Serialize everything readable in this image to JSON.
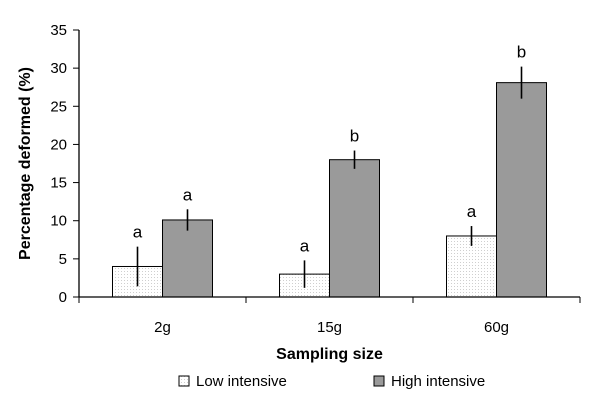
{
  "chart_data": {
    "type": "bar",
    "title": "",
    "xlabel": "Sampling size",
    "ylabel": "Percentage deformed (%)",
    "ylim": [
      0,
      35
    ],
    "yticks": [
      0,
      5,
      10,
      15,
      20,
      25,
      30,
      35
    ],
    "categories": [
      "2g",
      "15g",
      "60g"
    ],
    "legend_position": "bottom",
    "series": [
      {
        "name": "Low intensive",
        "color": "#f4f4f4",
        "values": [
          4,
          3,
          8
        ],
        "error": [
          2.6,
          1.8,
          1.3
        ],
        "labels": [
          "a",
          "a",
          "a"
        ]
      },
      {
        "name": "High intensive",
        "color": "#9a9a9a",
        "values": [
          10.1,
          18,
          28.1
        ],
        "error": [
          1.4,
          1.2,
          2.1
        ],
        "labels": [
          "a",
          "b",
          "b"
        ]
      }
    ]
  }
}
